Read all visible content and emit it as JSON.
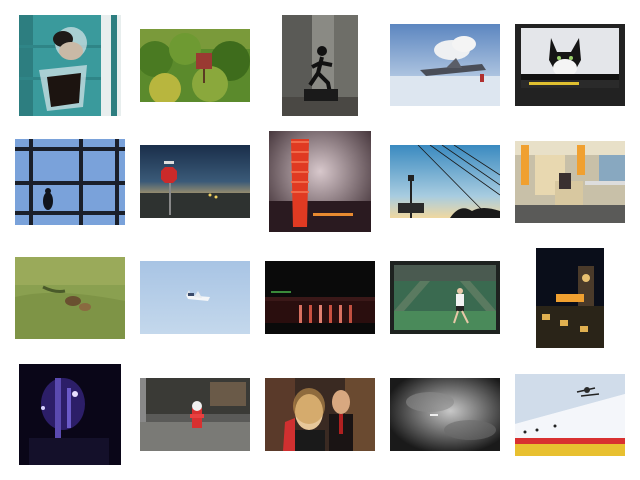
{
  "grid": {
    "rows": 4,
    "columns": 5,
    "thumbnails": [
      {
        "subject": "bird-feeder-icon"
      },
      {
        "subject": "forest-sign-icon"
      },
      {
        "subject": "runner-mural-icon"
      },
      {
        "subject": "aircraft-snow-icon"
      },
      {
        "subject": "tv-cat-icon"
      },
      {
        "subject": "bird-window-icon"
      },
      {
        "subject": "stop-sign-dusk-icon"
      },
      {
        "subject": "red-cups-icon"
      },
      {
        "subject": "power-lines-icon"
      },
      {
        "subject": "library-interior-icon"
      },
      {
        "subject": "animal-grass-icon"
      },
      {
        "subject": "airplane-sky-icon"
      },
      {
        "subject": "dark-gate-icon"
      },
      {
        "subject": "tennis-player-icon"
      },
      {
        "subject": "clock-tower-night-icon"
      },
      {
        "subject": "blue-night-scene-icon"
      },
      {
        "subject": "fire-hydrant-icon"
      },
      {
        "subject": "party-couple-icon"
      },
      {
        "subject": "cloudy-sky-icon"
      },
      {
        "subject": "ski-jump-icon"
      }
    ]
  },
  "colors": {
    "background": "#ffffff",
    "stop_sign": "#cc2a2a",
    "cups": "#e03a22",
    "sky_blue": "#8fb4dc"
  }
}
